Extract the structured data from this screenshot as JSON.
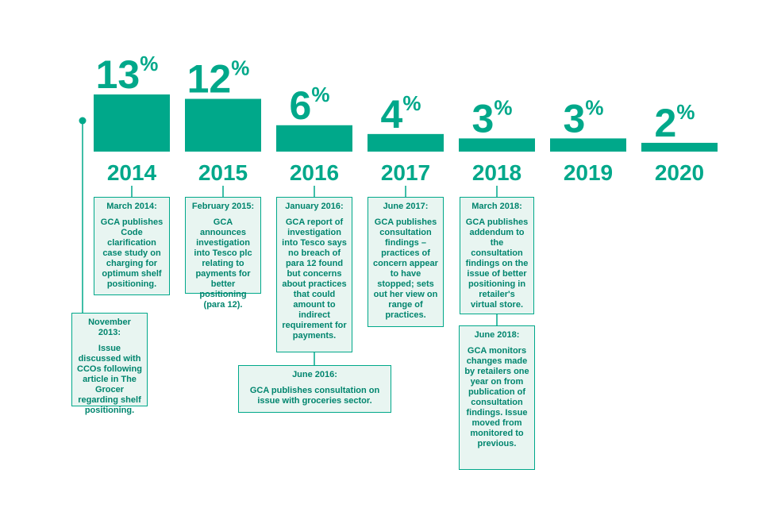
{
  "colors": {
    "accent": "#00a88a",
    "text": "#00856e",
    "box_fill": "#e8f5f1"
  },
  "chart_data": {
    "type": "bar",
    "title": "",
    "xlabel": "",
    "ylabel": "",
    "categories": [
      "2014",
      "2015",
      "2016",
      "2017",
      "2018",
      "2019",
      "2020"
    ],
    "values": [
      13,
      12,
      6,
      4,
      3,
      3,
      2
    ],
    "value_labels": [
      "13",
      "12",
      "6",
      "4",
      "3",
      "3",
      "2"
    ],
    "unit_suffix": "%",
    "ylim": [
      0,
      13
    ],
    "grid": false,
    "legend": "none"
  },
  "timeline": [
    {
      "heading": "November 2013:",
      "text": "Issue discussed with CCOs following article in The Grocer regarding shelf positioning."
    },
    {
      "heading": "March 2014:",
      "text": "GCA publishes Code clarification case study on charging for optimum shelf positioning."
    },
    {
      "heading": "February 2015:",
      "text": "GCA announces investigation into Tesco plc relating to payments for better positioning (para 12)."
    },
    {
      "heading": "January 2016:",
      "text": "GCA report of investigation into Tesco says no breach of para 12 found but concerns about practices that could amount to indirect requirement for payments."
    },
    {
      "heading": "June 2016:",
      "text": "GCA publishes consultation on issue with groceries sector."
    },
    {
      "heading": "June 2017:",
      "text": "GCA publishes consultation findings – practices of concern appear to have stopped; sets out her view on range of practices."
    },
    {
      "heading": "March 2018:",
      "text": "GCA publishes addendum to the consultation findings on the issue of better positioning in retailer's virtual store."
    },
    {
      "heading": "June 2018:",
      "text": "GCA monitors changes made by retailers one year on from publication of consultation findings. Issue moved from monitored to previous."
    }
  ]
}
